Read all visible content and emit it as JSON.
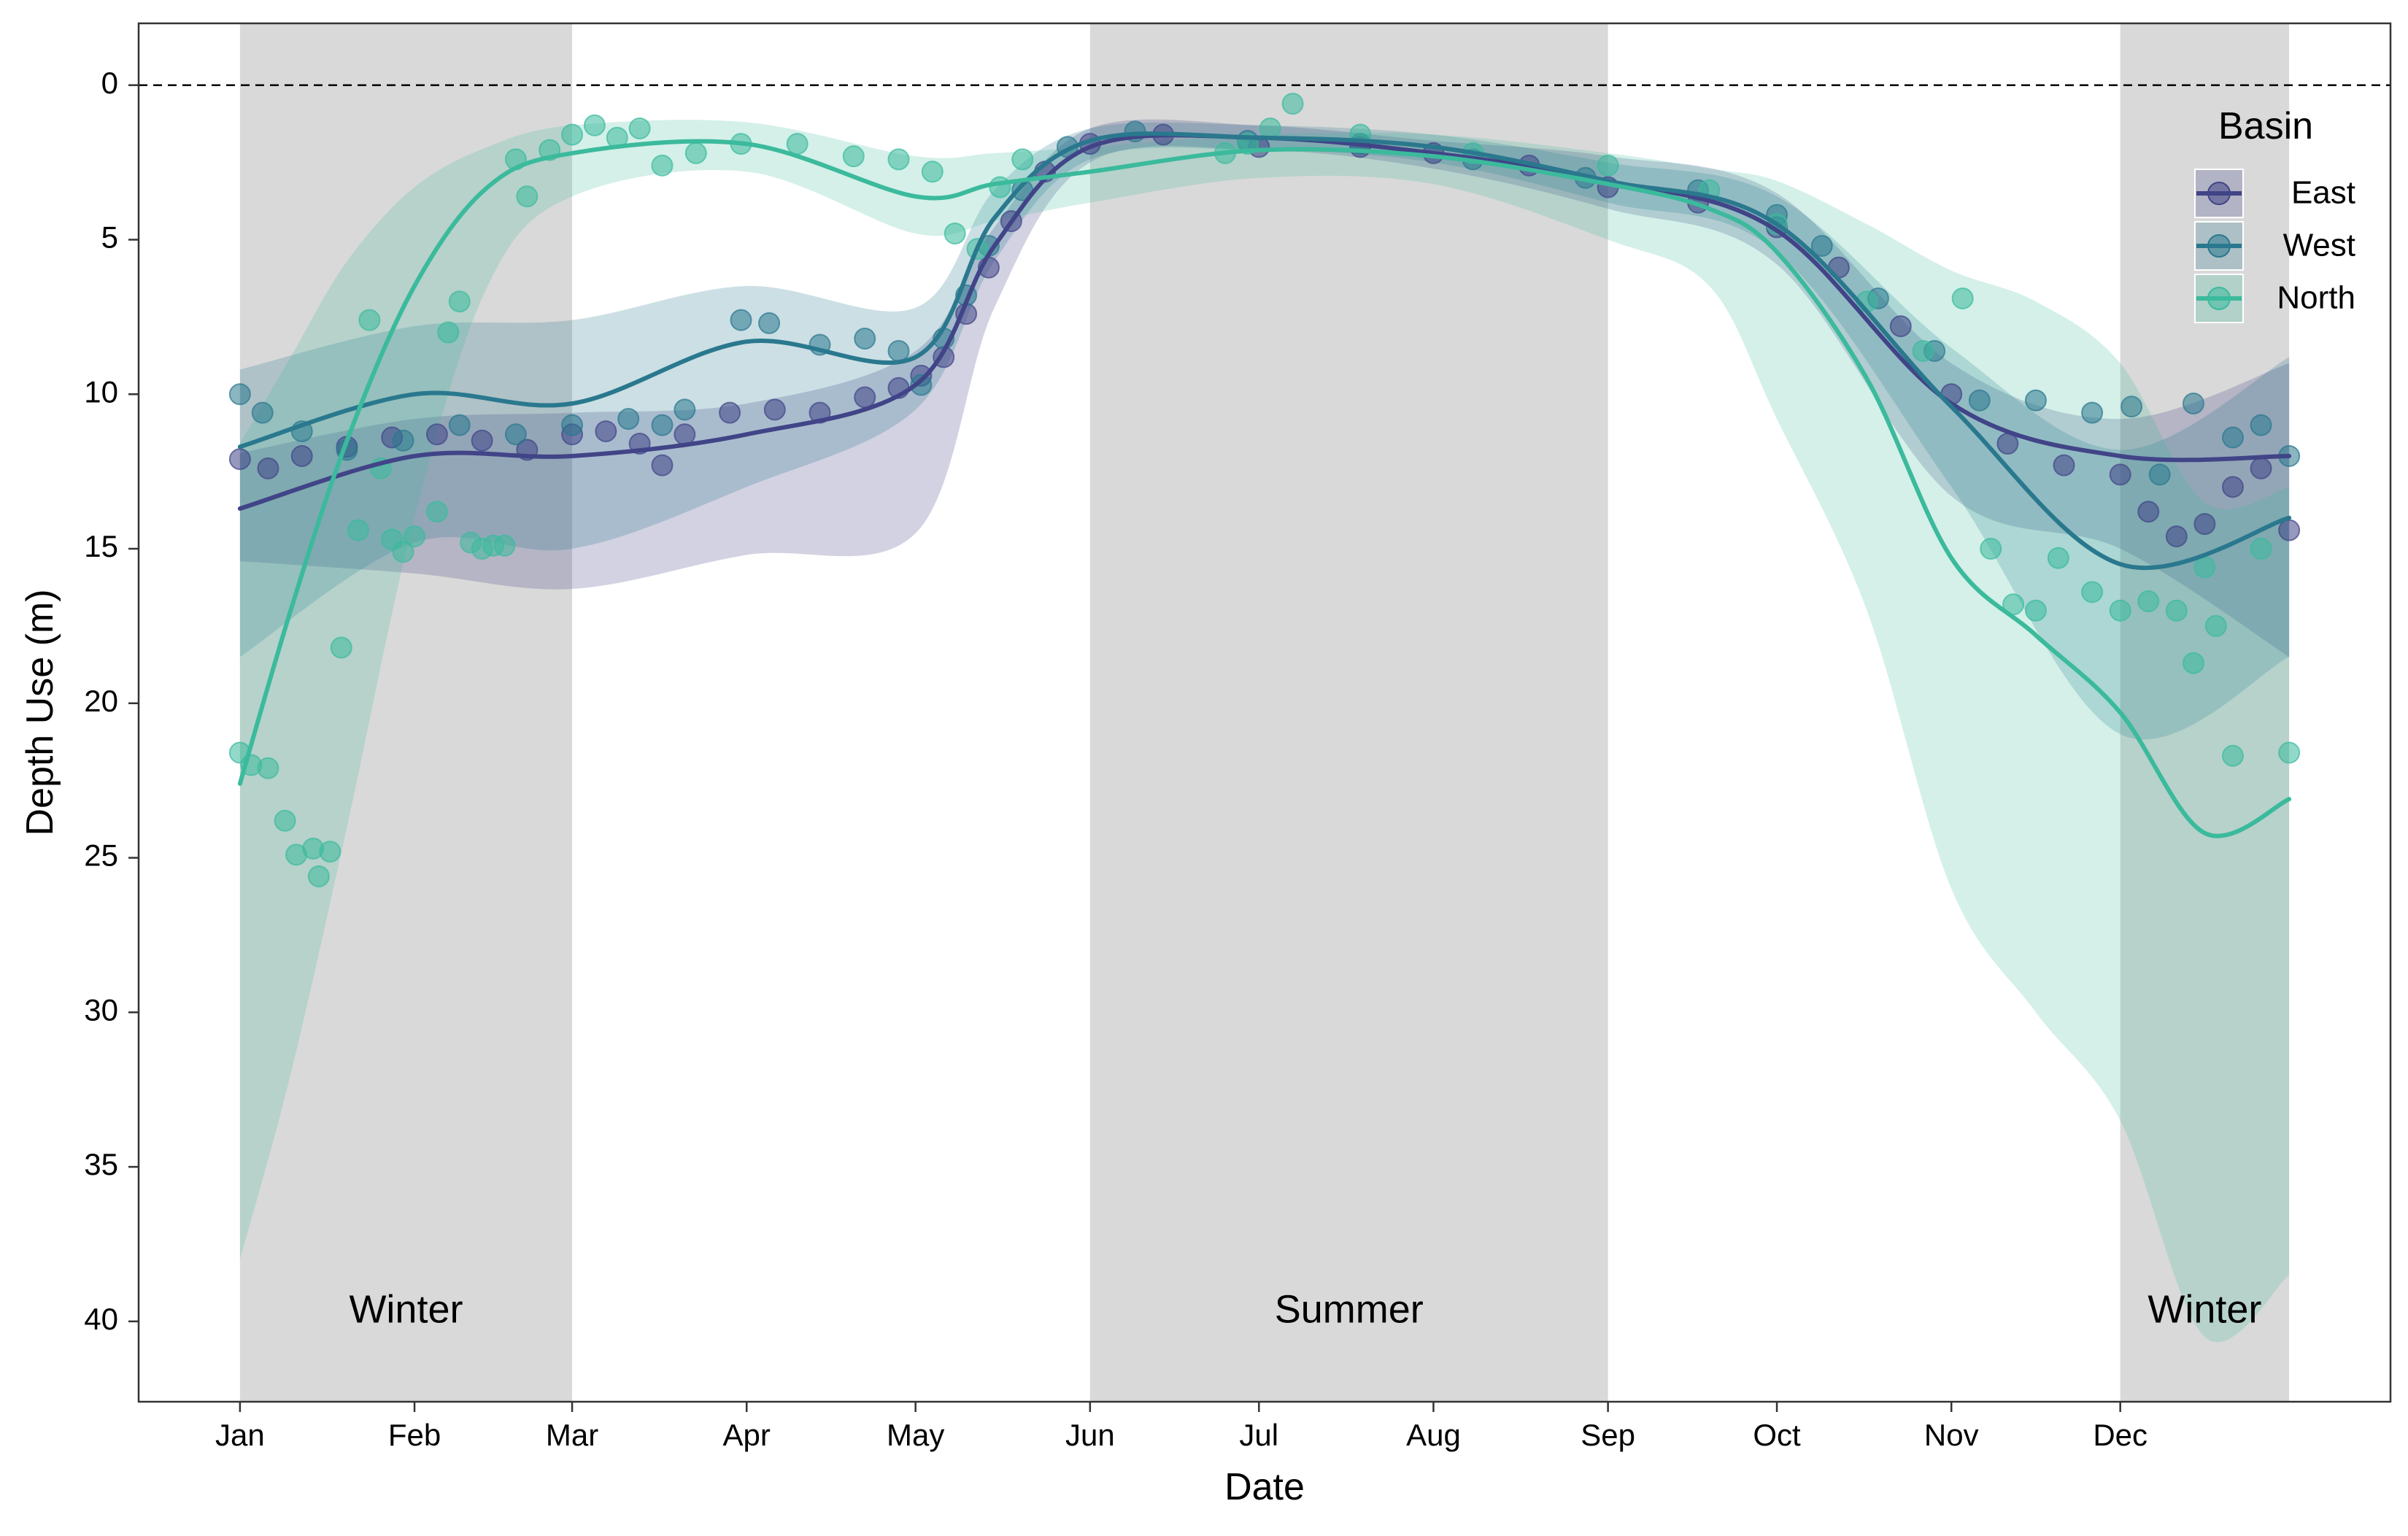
{
  "chart_data": {
    "type": "line",
    "title": "",
    "xlabel": "Date",
    "ylabel": "Depth Use (m)",
    "x_tick_labels": [
      "Jan",
      "Feb",
      "Mar",
      "Apr",
      "May",
      "Jun",
      "Jul",
      "Aug",
      "Sep",
      "Oct",
      "Nov",
      "Dec"
    ],
    "x_tick_doy": [
      1,
      32,
      60,
      91,
      121,
      152,
      182,
      213,
      244,
      274,
      305,
      335
    ],
    "xlim_doy": [
      -17,
      383
    ],
    "y_ticks": [
      0,
      5,
      10,
      15,
      20,
      25,
      30,
      35,
      40
    ],
    "ylim": [
      -2,
      42.6
    ],
    "y_reversed": true,
    "reference_line": {
      "y": 0,
      "style": "dashed",
      "color": "#000000"
    },
    "grid": false,
    "seasons": [
      {
        "label": "Winter",
        "start_doy": 1,
        "end_doy": 60
      },
      {
        "label": "Summer",
        "start_doy": 152,
        "end_doy": 244
      },
      {
        "label": "Winter",
        "start_doy": 335,
        "end_doy": 365
      }
    ],
    "season_label_depth": 39.7,
    "legend": {
      "title": "Basin",
      "position": "top-right"
    },
    "series": [
      {
        "name": "East",
        "color": "#414487",
        "smooth": {
          "x": [
            1,
            32,
            60,
            91,
            121,
            135,
            152,
            182,
            213,
            244,
            274,
            305,
            335,
            365
          ],
          "y": [
            13.7,
            12.0,
            12.0,
            11.3,
            9.7,
            5.2,
            2.0,
            1.7,
            2.2,
            3.1,
            4.7,
            10.3,
            12.0,
            12.0
          ],
          "lower": [
            11.9,
            10.8,
            10.6,
            10.3,
            8.6,
            4.6,
            1.4,
            1.3,
            1.8,
            2.3,
            3.5,
            9.0,
            10.8,
            9.0
          ],
          "upper": [
            15.4,
            15.8,
            16.3,
            15.2,
            14.5,
            7.2,
            2.5,
            2.1,
            2.7,
            4.0,
            5.8,
            13.3,
            15.0,
            18.5
          ]
        },
        "points": [
          [
            1,
            12.1
          ],
          [
            6,
            12.4
          ],
          [
            12,
            12.0
          ],
          [
            20,
            11.7
          ],
          [
            28,
            11.4
          ],
          [
            36,
            11.3
          ],
          [
            44,
            11.5
          ],
          [
            52,
            11.8
          ],
          [
            60,
            11.3
          ],
          [
            66,
            11.2
          ],
          [
            72,
            11.6
          ],
          [
            76,
            12.3
          ],
          [
            80,
            11.3
          ],
          [
            88,
            10.6
          ],
          [
            96,
            10.5
          ],
          [
            104,
            10.6
          ],
          [
            112,
            10.1
          ],
          [
            118,
            9.8
          ],
          [
            122,
            9.4
          ],
          [
            126,
            8.8
          ],
          [
            130,
            7.4
          ],
          [
            134,
            5.9
          ],
          [
            138,
            4.4
          ],
          [
            144,
            2.8
          ],
          [
            152,
            1.9
          ],
          [
            165,
            1.6
          ],
          [
            182,
            2.0
          ],
          [
            200,
            2.0
          ],
          [
            213,
            2.2
          ],
          [
            230,
            2.6
          ],
          [
            244,
            3.3
          ],
          [
            260,
            3.8
          ],
          [
            274,
            4.6
          ],
          [
            285,
            5.9
          ],
          [
            296,
            7.8
          ],
          [
            305,
            10.0
          ],
          [
            315,
            11.6
          ],
          [
            325,
            12.3
          ],
          [
            335,
            12.6
          ],
          [
            340,
            13.8
          ],
          [
            345,
            14.6
          ],
          [
            350,
            14.2
          ],
          [
            355,
            13.0
          ],
          [
            360,
            12.4
          ],
          [
            365,
            14.4
          ]
        ]
      },
      {
        "name": "West",
        "color": "#2A788E",
        "smooth": {
          "x": [
            1,
            32,
            60,
            91,
            121,
            135,
            152,
            182,
            213,
            244,
            274,
            305,
            335,
            365
          ],
          "y": [
            11.7,
            10.0,
            10.3,
            8.3,
            8.8,
            4.3,
            1.8,
            1.7,
            2.0,
            3.1,
            4.5,
            10.4,
            15.5,
            14.0
          ],
          "lower": [
            9.2,
            7.8,
            7.6,
            6.5,
            7.2,
            3.4,
            1.4,
            1.3,
            1.6,
            2.5,
            3.6,
            8.5,
            11.8,
            8.8
          ],
          "upper": [
            18.5,
            14.8,
            15.0,
            13.0,
            10.5,
            5.7,
            2.4,
            2.1,
            2.5,
            3.8,
            5.4,
            13.0,
            21.0,
            18.5
          ]
        },
        "points": [
          [
            1,
            10.0
          ],
          [
            5,
            10.6
          ],
          [
            12,
            11.2
          ],
          [
            20,
            11.8
          ],
          [
            30,
            11.5
          ],
          [
            40,
            11.0
          ],
          [
            50,
            11.3
          ],
          [
            60,
            11.0
          ],
          [
            70,
            10.8
          ],
          [
            76,
            11.0
          ],
          [
            80,
            10.5
          ],
          [
            90,
            7.6
          ],
          [
            95,
            7.7
          ],
          [
            104,
            8.4
          ],
          [
            112,
            8.2
          ],
          [
            118,
            8.6
          ],
          [
            122,
            9.7
          ],
          [
            126,
            8.2
          ],
          [
            130,
            6.8
          ],
          [
            134,
            5.2
          ],
          [
            140,
            3.4
          ],
          [
            148,
            2.0
          ],
          [
            160,
            1.5
          ],
          [
            180,
            1.8
          ],
          [
            200,
            1.9
          ],
          [
            220,
            2.4
          ],
          [
            240,
            3.0
          ],
          [
            260,
            3.4
          ],
          [
            274,
            4.2
          ],
          [
            282,
            5.2
          ],
          [
            292,
            6.9
          ],
          [
            302,
            8.6
          ],
          [
            310,
            10.2
          ],
          [
            320,
            10.2
          ],
          [
            330,
            10.6
          ],
          [
            337,
            10.4
          ],
          [
            342,
            12.6
          ],
          [
            348,
            10.3
          ],
          [
            355,
            11.4
          ],
          [
            360,
            11.0
          ],
          [
            365,
            12.0
          ]
        ]
      },
      {
        "name": "North",
        "color": "#3BBA9C",
        "smooth": {
          "x": [
            1,
            10,
            20,
            32,
            45,
            60,
            91,
            121,
            135,
            152,
            182,
            213,
            244,
            262,
            274,
            290,
            305,
            320,
            335,
            350,
            365
          ],
          "y": [
            22.6,
            17.0,
            11.5,
            6.5,
            3.3,
            2.2,
            1.9,
            3.6,
            3.2,
            2.8,
            2.1,
            2.3,
            3.2,
            4.0,
            5.4,
            9.5,
            15.3,
            17.8,
            20.3,
            24.2,
            23.1
          ],
          "lower": [
            11.6,
            8.8,
            5.7,
            3.3,
            2.0,
            1.3,
            1.2,
            2.3,
            2.2,
            2.0,
            1.6,
            1.6,
            2.2,
            2.7,
            3.1,
            4.5,
            6.0,
            7.0,
            9.0,
            13.5,
            13.0
          ],
          "upper": [
            38.0,
            32.0,
            24.0,
            14.0,
            6.5,
            3.6,
            2.8,
            4.8,
            4.4,
            3.8,
            3.0,
            3.2,
            5.0,
            6.5,
            10.8,
            17.0,
            26.0,
            30.0,
            33.5,
            40.5,
            38.5
          ]
        },
        "points": [
          [
            1,
            21.6
          ],
          [
            3,
            22.0
          ],
          [
            6,
            22.1
          ],
          [
            9,
            23.8
          ],
          [
            11,
            24.9
          ],
          [
            14,
            24.7
          ],
          [
            15,
            25.6
          ],
          [
            17,
            24.8
          ],
          [
            19,
            18.2
          ],
          [
            22,
            14.4
          ],
          [
            24,
            7.6
          ],
          [
            26,
            12.4
          ],
          [
            28,
            14.7
          ],
          [
            30,
            15.1
          ],
          [
            32,
            14.6
          ],
          [
            36,
            13.8
          ],
          [
            38,
            8.0
          ],
          [
            40,
            7.0
          ],
          [
            42,
            14.8
          ],
          [
            44,
            15.0
          ],
          [
            46,
            14.9
          ],
          [
            48,
            14.9
          ],
          [
            50,
            2.4
          ],
          [
            52,
            3.6
          ],
          [
            56,
            2.1
          ],
          [
            60,
            1.6
          ],
          [
            64,
            1.3
          ],
          [
            68,
            1.7
          ],
          [
            72,
            1.4
          ],
          [
            76,
            2.6
          ],
          [
            82,
            2.2
          ],
          [
            90,
            1.9
          ],
          [
            100,
            1.9
          ],
          [
            110,
            2.3
          ],
          [
            118,
            2.4
          ],
          [
            124,
            2.8
          ],
          [
            128,
            4.8
          ],
          [
            132,
            5.3
          ],
          [
            136,
            3.3
          ],
          [
            140,
            2.4
          ],
          [
            176,
            2.2
          ],
          [
            180,
            1.9
          ],
          [
            184,
            1.4
          ],
          [
            188,
            0.6
          ],
          [
            200,
            1.6
          ],
          [
            220,
            2.2
          ],
          [
            244,
            2.6
          ],
          [
            262,
            3.4
          ],
          [
            274,
            4.5
          ],
          [
            290,
            7.0
          ],
          [
            300,
            8.6
          ],
          [
            307,
            6.9
          ],
          [
            312,
            15.0
          ],
          [
            316,
            16.8
          ],
          [
            320,
            17.0
          ],
          [
            324,
            15.3
          ],
          [
            330,
            16.4
          ],
          [
            335,
            17.0
          ],
          [
            340,
            16.7
          ],
          [
            345,
            17.0
          ],
          [
            348,
            18.7
          ],
          [
            350,
            15.6
          ],
          [
            352,
            17.5
          ],
          [
            355,
            21.7
          ],
          [
            360,
            15.0
          ],
          [
            365,
            21.6
          ]
        ]
      }
    ]
  }
}
